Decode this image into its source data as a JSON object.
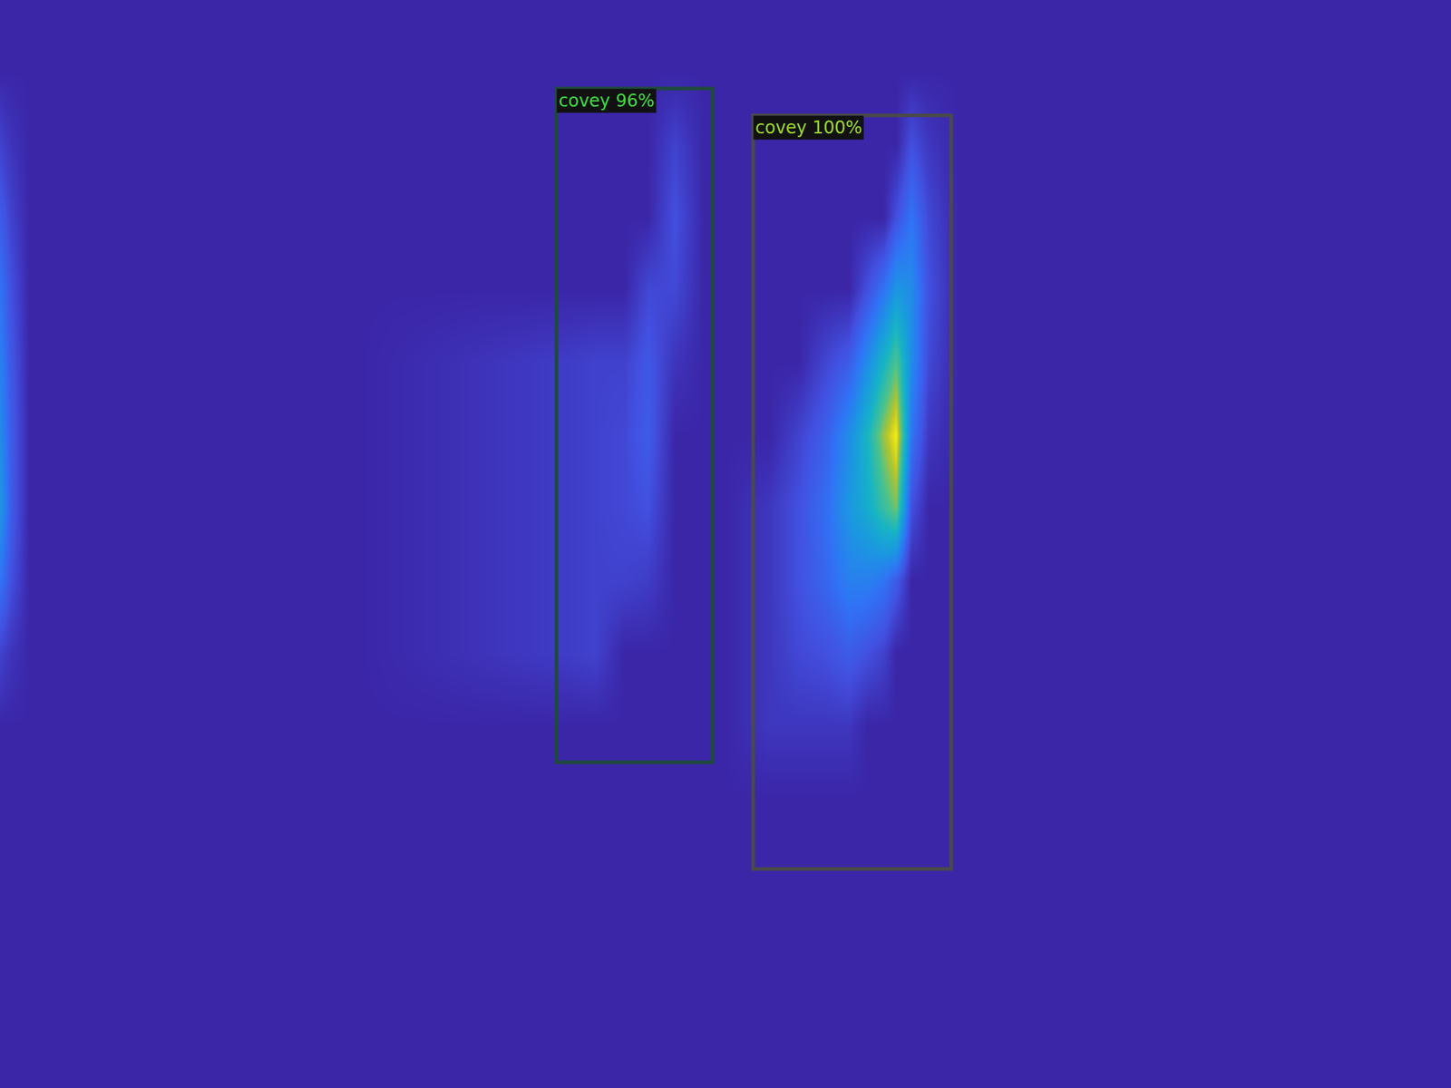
{
  "chart_data": {
    "type": "heatmap",
    "tick_labels": false,
    "xlim": [
      0,
      2000
    ],
    "ylim": [
      1500,
      0
    ],
    "zlim": [
      0,
      1
    ],
    "x": [
      0,
      15,
      40,
      200,
      500,
      780,
      820,
      860,
      893,
      930,
      970,
      1000,
      1060,
      1100,
      1140,
      1170,
      1195,
      1218,
      1235,
      1256,
      1280,
      1320,
      1400,
      1700,
      2000
    ],
    "y": [
      0,
      100,
      200,
      300,
      400,
      500,
      600,
      700,
      800,
      900,
      1000,
      1100,
      1200,
      1300,
      1400,
      1500
    ],
    "z": [
      [
        0,
        0,
        0,
        0,
        0,
        0,
        0,
        0,
        0,
        0,
        0,
        0,
        0,
        0,
        0,
        0,
        0,
        0,
        0,
        0,
        0,
        0,
        0,
        0,
        0
      ],
      [
        0,
        0,
        0,
        0,
        0,
        0,
        0,
        0,
        0,
        0,
        0,
        0,
        0,
        0,
        0,
        0,
        0,
        0,
        0,
        0,
        0,
        0,
        0,
        0,
        0
      ],
      [
        0.1,
        0.05,
        0,
        0,
        0,
        0,
        0,
        0,
        0,
        0.1,
        0,
        0,
        0,
        0,
        0,
        0,
        0,
        0,
        0,
        0.15,
        0.06,
        0,
        0,
        0,
        0
      ],
      [
        0.2,
        0.1,
        0,
        0,
        0,
        0,
        0,
        0,
        0,
        0.15,
        0,
        0,
        0,
        0,
        0,
        0,
        0,
        0,
        0.15,
        0.3,
        0.12,
        0,
        0,
        0,
        0
      ],
      [
        0.3,
        0.15,
        0,
        0,
        0,
        0,
        0,
        0,
        0.12,
        0.12,
        0,
        0,
        0,
        0,
        0,
        0,
        0.15,
        0.3,
        0.45,
        0.4,
        0.15,
        0,
        0,
        0,
        0
      ],
      [
        0.35,
        0.18,
        0,
        0,
        0,
        0.08,
        0.1,
        0.1,
        0.18,
        0.05,
        0,
        0,
        0,
        0,
        0.12,
        0.2,
        0.4,
        0.6,
        0.75,
        0.4,
        0.12,
        0,
        0,
        0,
        0
      ],
      [
        0.4,
        0.2,
        0,
        0,
        0,
        0.08,
        0.1,
        0.12,
        0.2,
        0,
        0,
        0,
        0,
        0.1,
        0.22,
        0.4,
        0.6,
        0.85,
        1,
        0.3,
        0.06,
        0,
        0,
        0,
        0
      ],
      [
        0.45,
        0.2,
        0,
        0,
        0,
        0.08,
        0.1,
        0.12,
        0.15,
        0,
        0,
        0,
        0.06,
        0.15,
        0.28,
        0.45,
        0.55,
        0.7,
        0.8,
        0.15,
        0,
        0,
        0,
        0,
        0
      ],
      [
        0.3,
        0.15,
        0,
        0,
        0,
        0.08,
        0.1,
        0.1,
        0.08,
        0,
        0,
        0,
        0.06,
        0.15,
        0.25,
        0.35,
        0.35,
        0.3,
        0.2,
        0,
        0,
        0,
        0,
        0,
        0
      ],
      [
        0.1,
        0.05,
        0,
        0,
        0,
        0.08,
        0.1,
        0,
        0,
        0,
        0,
        0,
        0.06,
        0.12,
        0.15,
        0.2,
        0.15,
        0.1,
        0,
        0,
        0,
        0,
        0,
        0,
        0
      ],
      [
        0,
        0,
        0,
        0,
        0,
        0,
        0,
        0,
        0,
        0,
        0,
        0,
        0.06,
        0.06,
        0.06,
        0.06,
        0,
        0,
        0,
        0,
        0,
        0,
        0,
        0,
        0
      ],
      [
        0,
        0,
        0,
        0,
        0,
        0,
        0,
        0,
        0,
        0,
        0,
        0,
        0,
        0,
        0,
        0,
        0,
        0,
        0,
        0,
        0,
        0,
        0,
        0,
        0
      ],
      [
        0,
        0,
        0,
        0,
        0,
        0,
        0,
        0,
        0,
        0,
        0,
        0,
        0,
        0,
        0,
        0,
        0,
        0,
        0,
        0,
        0,
        0,
        0,
        0,
        0
      ],
      [
        0,
        0,
        0,
        0,
        0,
        0,
        0,
        0,
        0,
        0,
        0,
        0,
        0,
        0,
        0,
        0,
        0,
        0,
        0,
        0,
        0,
        0,
        0,
        0,
        0
      ],
      [
        0,
        0,
        0,
        0,
        0,
        0,
        0,
        0,
        0,
        0,
        0,
        0,
        0,
        0,
        0,
        0,
        0,
        0,
        0,
        0,
        0,
        0,
        0,
        0,
        0
      ],
      [
        0,
        0,
        0,
        0,
        0,
        0,
        0,
        0,
        0,
        0,
        0,
        0,
        0,
        0,
        0,
        0,
        0,
        0,
        0,
        0,
        0,
        0,
        0,
        0,
        0
      ]
    ],
    "boxes": [
      {
        "label": "covey 96%",
        "x0": 767,
        "x1": 982,
        "y0": 122,
        "y1": 1051,
        "color": "#1f4a3e"
      },
      {
        "label": "covey 100%",
        "x0": 1038,
        "x1": 1311,
        "y0": 159,
        "y1": 1198,
        "color": "#4a4a4a"
      }
    ]
  }
}
